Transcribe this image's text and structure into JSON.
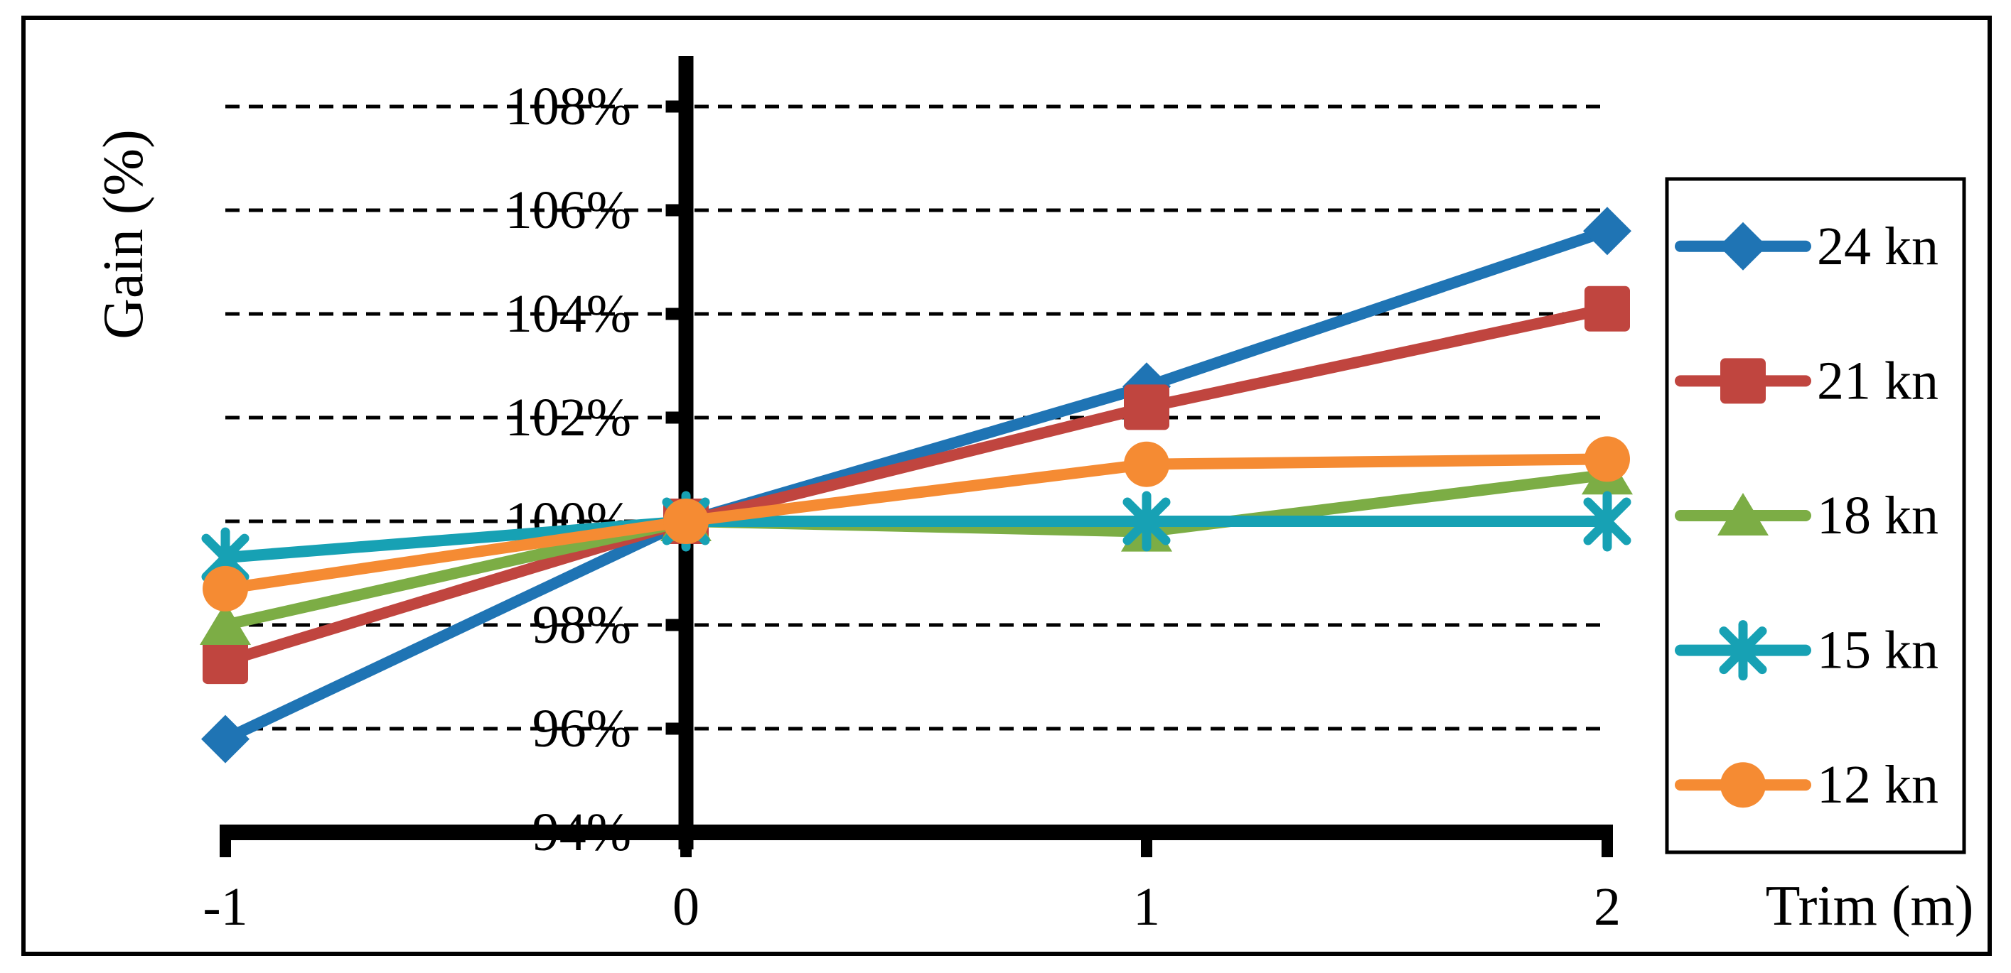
{
  "figure": {
    "background": "#FFFFFF",
    "border_color": "#000000"
  },
  "chart_data": {
    "type": "line",
    "title": "",
    "xlabel": "Trim (m)",
    "ylabel": "Gain (%)",
    "x": [
      -1,
      0,
      1,
      2
    ],
    "x_tick_labels": [
      "-1",
      "0",
      "1",
      "2"
    ],
    "xlim": [
      -1,
      2
    ],
    "y_ticks_percent": [
      94,
      96,
      98,
      100,
      102,
      104,
      106,
      108
    ],
    "y_tick_labels": [
      "94%",
      "96%",
      "98%",
      "100%",
      "102%",
      "104%",
      "106%",
      "108%"
    ],
    "ylim_percent": [
      94,
      109.5
    ],
    "grid": {
      "horizontal": true,
      "style": "dashed",
      "color": "#000000"
    },
    "axis_color": "#000000",
    "legend": {
      "position": "right",
      "border_color": "#000000",
      "background": "#FFFFFF"
    },
    "series": [
      {
        "name": "24 kn",
        "marker": "diamond",
        "color": "#1F74B4",
        "values_percent": [
          95.8,
          100.0,
          102.6,
          105.6
        ]
      },
      {
        "name": "21 kn",
        "marker": "square",
        "color": "#C0453F",
        "values_percent": [
          97.3,
          100.0,
          102.2,
          104.1
        ]
      },
      {
        "name": "18 kn",
        "marker": "triangle",
        "color": "#7CAD45",
        "values_percent": [
          98.0,
          100.0,
          99.8,
          100.9
        ]
      },
      {
        "name": "15 kn",
        "marker": "asterisk",
        "color": "#17A1B4",
        "values_percent": [
          99.3,
          100.0,
          100.0,
          100.0
        ]
      },
      {
        "name": "12 kn",
        "marker": "circle",
        "color": "#F58B33",
        "values_percent": [
          98.7,
          100.0,
          101.1,
          101.2
        ]
      }
    ]
  }
}
